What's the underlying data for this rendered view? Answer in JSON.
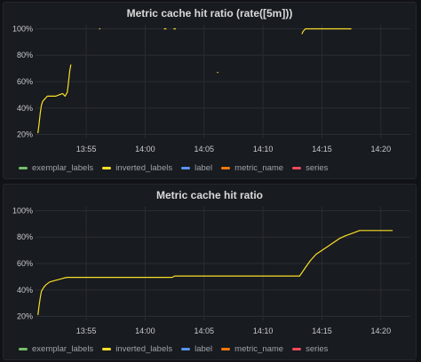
{
  "panels": [
    {
      "title": "Metric cache hit ratio (rate([5m]))",
      "legend": [
        {
          "label": "exemplar_labels",
          "color": "#73bf69"
        },
        {
          "label": "inverted_labels",
          "color": "#fade2a"
        },
        {
          "label": "label",
          "color": "#5794f2"
        },
        {
          "label": "metric_name",
          "color": "#ff780a"
        },
        {
          "label": "series",
          "color": "#f2495c"
        }
      ]
    },
    {
      "title": "Metric cache hit ratio",
      "legend": [
        {
          "label": "exemplar_labels",
          "color": "#73bf69"
        },
        {
          "label": "inverted_labels",
          "color": "#fade2a"
        },
        {
          "label": "label",
          "color": "#5794f2"
        },
        {
          "label": "metric_name",
          "color": "#ff780a"
        },
        {
          "label": "series",
          "color": "#f2495c"
        }
      ]
    }
  ],
  "chart_data": [
    {
      "type": "line",
      "title": "Metric cache hit ratio (rate([5m]))",
      "x_ticks": [
        "13:55",
        "14:00",
        "14:05",
        "14:10",
        "14:15",
        "14:20"
      ],
      "x_tick_values": [
        -5,
        0,
        5,
        10,
        15,
        20
      ],
      "xlim": [
        -9.3,
        22.5
      ],
      "y_ticks": [
        "20%",
        "40%",
        "60%",
        "80%",
        "100%"
      ],
      "y_tick_values": [
        20,
        40,
        60,
        80,
        100
      ],
      "ylim": [
        17,
        103
      ],
      "grid": true,
      "legend_position": "bottom-left",
      "series": [
        {
          "name": "inverted_labels",
          "color": "#fade2a",
          "segments": [
            [
              [
                -9.1,
                21
              ],
              [
                -9.0,
                28
              ],
              [
                -8.9,
                36
              ],
              [
                -8.8,
                42
              ],
              [
                -8.7,
                45
              ],
              [
                -8.5,
                47
              ],
              [
                -8.3,
                49
              ],
              [
                -8.0,
                49
              ],
              [
                -7.6,
                49
              ],
              [
                -7.3,
                50
              ],
              [
                -7.0,
                51
              ],
              [
                -6.8,
                49
              ],
              [
                -6.6,
                52
              ],
              [
                -6.5,
                60
              ],
              [
                -6.4,
                68
              ],
              [
                -6.3,
                73
              ]
            ],
            [
              [
                -3.9,
                100
              ],
              [
                -3.8,
                100
              ]
            ],
            [
              [
                1.6,
                100
              ],
              [
                1.8,
                100
              ]
            ],
            [
              [
                2.4,
                100
              ],
              [
                2.6,
                100
              ]
            ],
            [
              [
                6.1,
                67
              ],
              [
                6.2,
                67
              ]
            ],
            [
              [
                13.3,
                96
              ],
              [
                13.4,
                98
              ],
              [
                13.6,
                100
              ],
              [
                15,
                100
              ],
              [
                17.5,
                100
              ]
            ]
          ]
        }
      ]
    },
    {
      "type": "line",
      "title": "Metric cache hit ratio",
      "x_ticks": [
        "13:55",
        "14:00",
        "14:05",
        "14:10",
        "14:15",
        "14:20"
      ],
      "x_tick_values": [
        -5,
        0,
        5,
        10,
        15,
        20
      ],
      "xlim": [
        -9.3,
        22.5
      ],
      "y_ticks": [
        "20%",
        "40%",
        "60%",
        "80%",
        "100%"
      ],
      "y_tick_values": [
        20,
        40,
        60,
        80,
        100
      ],
      "ylim": [
        17,
        103
      ],
      "grid": true,
      "legend_position": "bottom-left",
      "series": [
        {
          "name": "inverted_labels",
          "color": "#fade2a",
          "segments": [
            [
              [
                -9.1,
                21
              ],
              [
                -9.0,
                28
              ],
              [
                -8.9,
                34
              ],
              [
                -8.8,
                39
              ],
              [
                -8.6,
                42
              ],
              [
                -8.4,
                44
              ],
              [
                -8.1,
                46
              ],
              [
                -7.7,
                47
              ],
              [
                -7.3,
                48
              ],
              [
                -6.9,
                49
              ],
              [
                -6.6,
                49.5
              ],
              [
                -6,
                49.5
              ],
              [
                0,
                49.5
              ],
              [
                2.3,
                49.5
              ],
              [
                2.5,
                50.5
              ],
              [
                8,
                50.5
              ],
              [
                13.1,
                50.5
              ],
              [
                13.3,
                53
              ],
              [
                13.6,
                57
              ],
              [
                14,
                62
              ],
              [
                14.5,
                67
              ],
              [
                15,
                70
              ],
              [
                15.5,
                73
              ],
              [
                16,
                76
              ],
              [
                16.5,
                79
              ],
              [
                17,
                81
              ],
              [
                17.6,
                83
              ],
              [
                18.2,
                85
              ],
              [
                18.8,
                85
              ],
              [
                20,
                85
              ],
              [
                21,
                85
              ]
            ]
          ]
        }
      ]
    }
  ]
}
